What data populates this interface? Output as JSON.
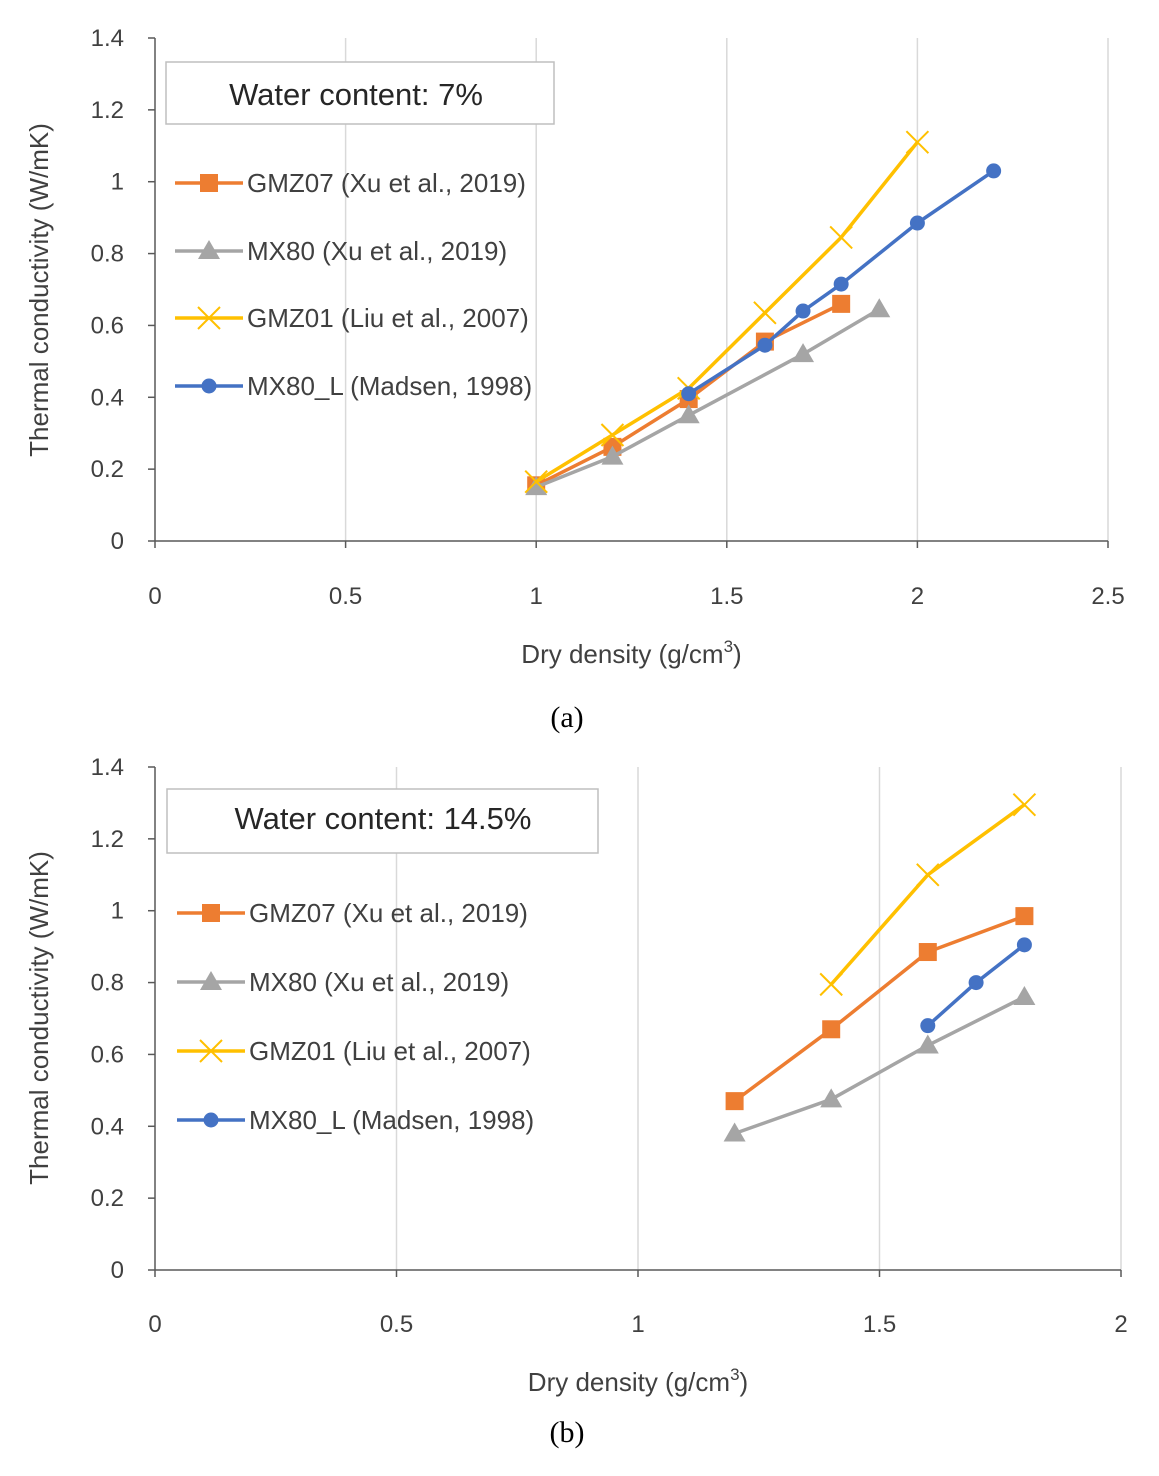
{
  "chart_data": [
    {
      "type": "line",
      "caption": "(a)",
      "annotation": "Water content: 7%",
      "xlabel_prefix": "Dry density (g/cm",
      "xlabel_sup": "3",
      "xlabel_suffix": ")",
      "ylabel": "Thermal conductivity (W/mK)",
      "xlim": [
        0,
        2.5
      ],
      "ylim": [
        0,
        1.4
      ],
      "xticks": [
        0,
        0.5,
        1,
        1.5,
        2,
        2.5
      ],
      "xtick_labels": [
        "0",
        "0.5",
        "1",
        "1.5",
        "2",
        "2.5"
      ],
      "yticks": [
        0,
        0.2,
        0.4,
        0.6,
        0.8,
        1,
        1.2,
        1.4
      ],
      "ytick_labels": [
        "0",
        "0.2",
        "0.4",
        "0.6",
        "0.8",
        "1",
        "1.2",
        "1.4"
      ],
      "grid": "vertical",
      "series": [
        {
          "name": "GMZ07 (Xu et al., 2019)",
          "color": "#ED7D31",
          "marker": "square",
          "x": [
            1.0,
            1.2,
            1.4,
            1.6,
            1.8
          ],
          "y": [
            0.155,
            0.262,
            0.395,
            0.555,
            0.66
          ]
        },
        {
          "name": "MX80 (Xu et al., 2019)",
          "color": "#A5A5A5",
          "marker": "triangle",
          "x": [
            1.0,
            1.2,
            1.4,
            1.7,
            1.9
          ],
          "y": [
            0.15,
            0.235,
            0.35,
            0.52,
            0.645
          ]
        },
        {
          "name": "GMZ01 (Liu et al., 2007)",
          "color": "#FFC000",
          "marker": "x",
          "x": [
            1.0,
            1.2,
            1.4,
            1.6,
            1.8,
            2.0
          ],
          "y": [
            0.165,
            0.295,
            0.425,
            0.635,
            0.845,
            1.11
          ]
        },
        {
          "name": "MX80_L (Madsen, 1998)",
          "color": "#4472C4",
          "marker": "circle",
          "x": [
            1.4,
            1.6,
            1.7,
            1.8,
            2.0,
            2.2
          ],
          "y": [
            0.41,
            0.545,
            0.64,
            0.715,
            0.885,
            1.03
          ]
        }
      ]
    },
    {
      "type": "line",
      "caption": "(b)",
      "annotation": "Water content: 14.5%",
      "xlabel_prefix": "Dry density (g/cm",
      "xlabel_sup": "3",
      "xlabel_suffix": ")",
      "ylabel": "Thermal conductivity (W/mK)",
      "xlim": [
        0,
        2
      ],
      "ylim": [
        0,
        1.4
      ],
      "xticks": [
        0,
        0.5,
        1,
        1.5,
        2
      ],
      "xtick_labels": [
        "0",
        "0.5",
        "1",
        "1.5",
        "2"
      ],
      "yticks": [
        0,
        0.2,
        0.4,
        0.6,
        0.8,
        1,
        1.2,
        1.4
      ],
      "ytick_labels": [
        "0",
        "0.2",
        "0.4",
        "0.6",
        "0.8",
        "1",
        "1.2",
        "1.4"
      ],
      "grid": "vertical",
      "series": [
        {
          "name": "GMZ07 (Xu et al., 2019)",
          "color": "#ED7D31",
          "marker": "square",
          "x": [
            1.2,
            1.4,
            1.6,
            1.8
          ],
          "y": [
            0.47,
            0.67,
            0.885,
            0.985
          ]
        },
        {
          "name": "MX80 (Xu et al., 2019)",
          "color": "#A5A5A5",
          "marker": "triangle",
          "x": [
            1.2,
            1.4,
            1.6,
            1.8
          ],
          "y": [
            0.38,
            0.475,
            0.625,
            0.76
          ]
        },
        {
          "name": "GMZ01 (Liu et al., 2007)",
          "color": "#FFC000",
          "marker": "x",
          "x": [
            1.4,
            1.6,
            1.8
          ],
          "y": [
            0.795,
            1.1,
            1.295
          ]
        },
        {
          "name": "MX80_L (Madsen, 1998)",
          "color": "#4472C4",
          "marker": "circle",
          "x": [
            1.6,
            1.7,
            1.8
          ],
          "y": [
            0.68,
            0.8,
            0.905
          ]
        }
      ]
    }
  ]
}
